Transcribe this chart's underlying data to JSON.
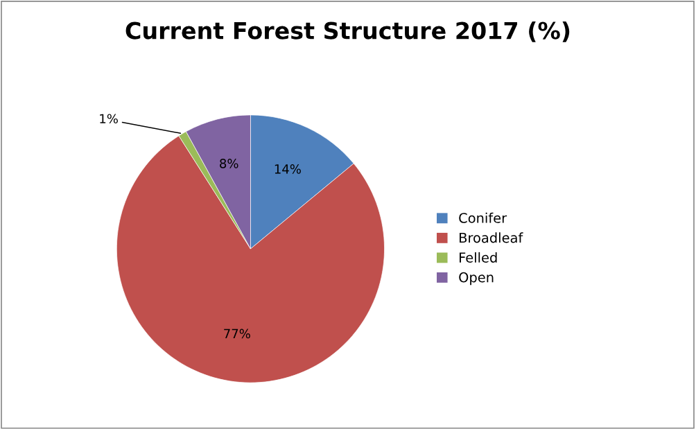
{
  "chart_data": {
    "type": "pie",
    "title": "Current Forest Structure 2017 (%)",
    "categories": [
      "Conifer",
      "Broadleaf",
      "Felled",
      "Open"
    ],
    "values": [
      14,
      77,
      1,
      8
    ],
    "colors": [
      "#4f81bd",
      "#c0504d",
      "#9bbb59",
      "#8064a2"
    ],
    "value_labels": [
      "14%",
      "77%",
      "1%",
      "8%"
    ],
    "legend": "right"
  }
}
